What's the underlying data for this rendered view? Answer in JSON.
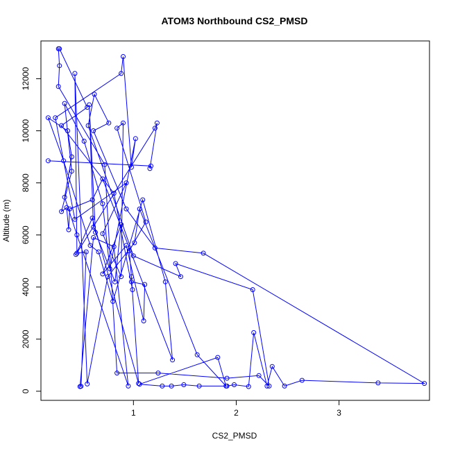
{
  "chart_data": {
    "type": "scatter",
    "title": "ATOM3 Northbound CS2_PMSD",
    "xlabel": "CS2_PMSD",
    "ylabel": "Altitude (m)",
    "xlim": [
      0.1,
      3.88
    ],
    "ylim": [
      -350,
      13450
    ],
    "xticks": [
      1,
      2,
      3
    ],
    "yticks": [
      0,
      2000,
      4000,
      6000,
      8000,
      10000,
      12000
    ],
    "grid": false,
    "legend": "none",
    "connected": true,
    "series": [
      {
        "color": "#0000ff",
        "points": [
          [
            0.17,
            8850
          ],
          [
            1.17,
            8650
          ],
          [
            1.16,
            8550
          ],
          [
            1.23,
            10300
          ],
          [
            1.21,
            10100
          ],
          [
            0.44,
            5250
          ],
          [
            0.6,
            6650
          ],
          [
            1.05,
            300
          ],
          [
            0.98,
            4400
          ],
          [
            0.96,
            5400
          ],
          [
            1.12,
            6500
          ],
          [
            0.84,
            10100
          ],
          [
            0.9,
            10300
          ],
          [
            0.88,
            4400
          ],
          [
            0.7,
            6050
          ],
          [
            0.93,
            8000
          ],
          [
            0.43,
            6600
          ],
          [
            0.24,
            10500
          ],
          [
            0.88,
            12200
          ],
          [
            0.9,
            12850
          ],
          [
            0.98,
            8600
          ],
          [
            1.02,
            9700
          ],
          [
            0.77,
            4700
          ],
          [
            0.7,
            7200
          ],
          [
            0.52,
            9600
          ],
          [
            0.33,
            11050
          ],
          [
            0.4,
            8450
          ],
          [
            0.3,
            6900
          ],
          [
            0.35,
            7050
          ],
          [
            0.37,
            6200
          ],
          [
            0.38,
            7000
          ],
          [
            0.6,
            7350
          ],
          [
            0.7,
            8150
          ],
          [
            1.38,
            1200
          ],
          [
            1.31,
            4200
          ],
          [
            1.09,
            7350
          ],
          [
            0.8,
            3450
          ],
          [
            0.66,
            5350
          ],
          [
            0.58,
            5600
          ],
          [
            0.32,
            8850
          ],
          [
            0.17,
            10500
          ],
          [
            0.36,
            10000
          ],
          [
            0.4,
            9000
          ],
          [
            0.33,
            7450
          ],
          [
            0.45,
            6000
          ],
          [
            0.95,
            200
          ],
          [
            0.81,
            5550
          ],
          [
            0.61,
            5900
          ],
          [
            0.48,
            180
          ],
          [
            0.49,
            190
          ],
          [
            0.54,
            5350
          ],
          [
            0.45,
            5300
          ],
          [
            0.43,
            12200
          ],
          [
            0.55,
            280
          ],
          [
            0.75,
            4400
          ],
          [
            1.01,
            5700
          ],
          [
            1.06,
            7000
          ],
          [
            1.62,
            1400
          ],
          [
            1.9,
            200
          ],
          [
            1.82,
            1300
          ],
          [
            1.06,
            270
          ],
          [
            1.28,
            200
          ],
          [
            1.37,
            200
          ],
          [
            1.49,
            250
          ],
          [
            1.64,
            200
          ],
          [
            1.91,
            200
          ],
          [
            1.98,
            250
          ],
          [
            2.12,
            180
          ],
          [
            2.17,
            2250
          ],
          [
            2.3,
            200
          ],
          [
            2.35,
            950
          ],
          [
            2.47,
            200
          ],
          [
            2.64,
            420
          ],
          [
            3.38,
            320
          ],
          [
            3.83,
            300
          ],
          [
            1.68,
            5300
          ],
          [
            1.21,
            5500
          ],
          [
            0.93,
            7000
          ],
          [
            0.61,
            10000
          ],
          [
            0.76,
            10300
          ],
          [
            0.62,
            11400
          ],
          [
            0.56,
            10200
          ],
          [
            1.0,
            5200
          ],
          [
            1.46,
            4400
          ],
          [
            1.41,
            4900
          ],
          [
            2.16,
            3900
          ],
          [
            2.32,
            200
          ],
          [
            2.22,
            600
          ],
          [
            1.91,
            500
          ],
          [
            1.24,
            700
          ],
          [
            0.84,
            700
          ],
          [
            0.72,
            8700
          ],
          [
            0.27,
            11700
          ],
          [
            0.28,
            12500
          ],
          [
            0.27,
            13150
          ],
          [
            0.28,
            13150
          ],
          [
            0.55,
            10900
          ],
          [
            0.3,
            10200
          ],
          [
            0.81,
            7600
          ],
          [
            0.99,
            3900
          ],
          [
            0.98,
            4200
          ],
          [
            1.11,
            4100
          ],
          [
            1.1,
            2700
          ],
          [
            0.93,
            5600
          ],
          [
            0.7,
            4500
          ],
          [
            0.88,
            6400
          ],
          [
            0.82,
            4200
          ],
          [
            0.61,
            6300
          ],
          [
            0.57,
            11000
          ],
          [
            0.63,
            6100
          ]
        ]
      }
    ]
  }
}
